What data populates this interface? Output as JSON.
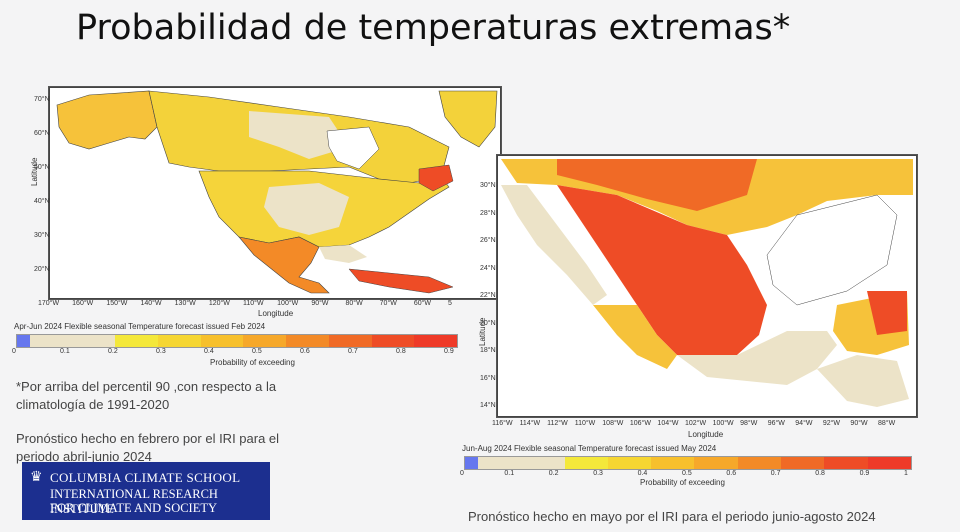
{
  "slide": {
    "title": "Probabilidad de temperaturas extremas*",
    "footnote": "*Por arriba del percentil 90 ,con respecto a la climatología de 1991-2020",
    "note_left": "Pronóstico hecho en febrero por el IRI para el periodo abril-junio 2024",
    "note_right": "Pronóstico hecho en mayo por el IRI para el periodo junio-agosto 2024"
  },
  "logo": {
    "line1": "COLUMBIA CLIMATE SCHOOL",
    "line2": "INTERNATIONAL RESEARCH INSTITUTE",
    "line3": "FOR CLIMATE AND SOCIETY",
    "icon": "crown-icon"
  },
  "chart_data": [
    {
      "type": "heatmap",
      "caption": "Apr-Jun 2024 Flexible seasonal Temperature forecast issued Feb 2024",
      "xlabel": "Longitude",
      "ylabel": "Latitude",
      "x_ticks": [
        "170°W",
        "160°W",
        "150°W",
        "140°W",
        "130°W",
        "120°W",
        "110°W",
        "100°W",
        "90°W",
        "80°W",
        "70°W",
        "60°W",
        "5"
      ],
      "y_ticks": [
        "70°N",
        "60°N",
        "50°N",
        "40°N",
        "30°N",
        "20°N"
      ],
      "colorbar_label": "Probability of exceeding",
      "colorbar_ticks": [
        "0",
        "0.1",
        "0.2",
        "0.3",
        "0.4",
        "0.5",
        "0.6",
        "0.7",
        "0.8",
        "0.9"
      ],
      "colorbar_colors": [
        "#6677ee",
        "#ece3c8",
        "#ece3c8",
        "#f4e83a",
        "#f6d632",
        "#f7c02c",
        "#f6a82a",
        "#f38a27",
        "#f06a26",
        "#ee4c26",
        "#ee3a28"
      ]
    },
    {
      "type": "heatmap",
      "caption": "Jun-Aug 2024 Flexible seasonal Temperature forecast issued May 2024",
      "xlabel": "Longitude",
      "ylabel": "Latitude",
      "x_ticks": [
        "116°W",
        "114°W",
        "112°W",
        "110°W",
        "108°W",
        "106°W",
        "104°W",
        "102°W",
        "100°W",
        "98°W",
        "96°W",
        "94°W",
        "92°W",
        "90°W",
        "88°W"
      ],
      "y_ticks": [
        "30°N",
        "28°N",
        "26°N",
        "24°N",
        "22°N",
        "20°N",
        "18°N",
        "16°N",
        "14°N"
      ],
      "colorbar_label": "Probability of exceeding",
      "colorbar_ticks": [
        "0",
        "0.1",
        "0.2",
        "0.3",
        "0.4",
        "0.5",
        "0.6",
        "0.7",
        "0.8",
        "0.9",
        "1"
      ],
      "colorbar_colors": [
        "#6677ee",
        "#ece3c8",
        "#ece3c8",
        "#f4e83a",
        "#f6d632",
        "#f7c02c",
        "#f6a82a",
        "#f38a27",
        "#f06a26",
        "#ee4c26",
        "#ee3a28"
      ]
    }
  ]
}
